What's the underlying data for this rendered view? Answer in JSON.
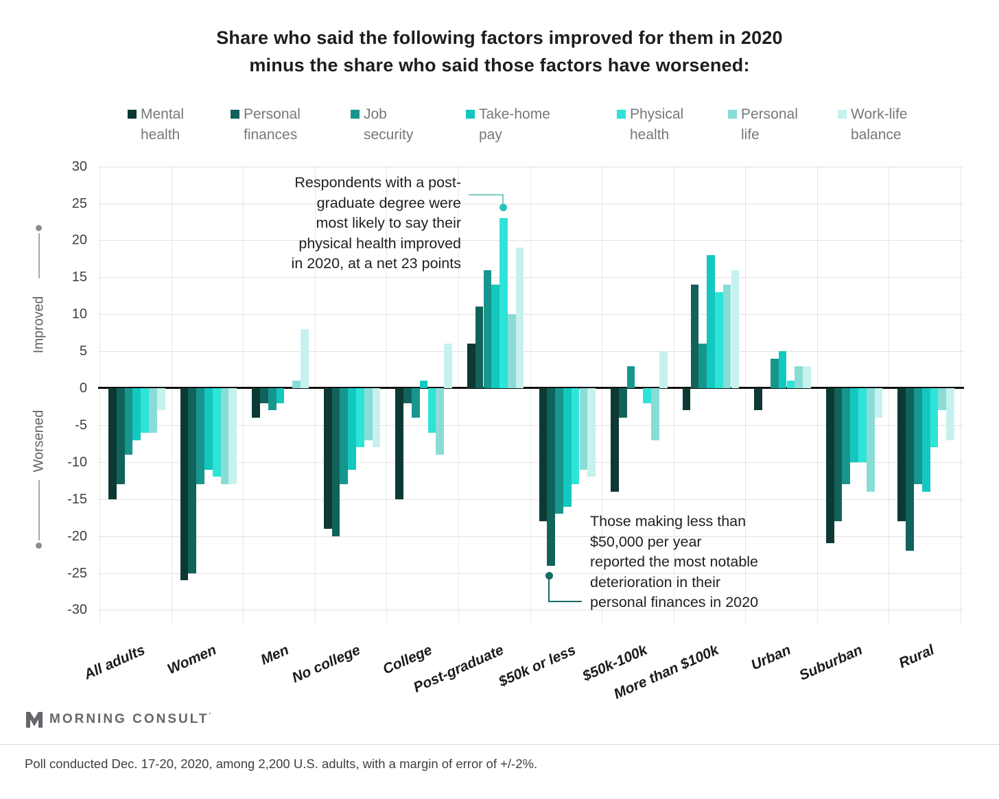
{
  "title": {
    "line1": "Share who said the following factors improved for them in 2020",
    "line2": "minus the share who said those factors have worsened:"
  },
  "chart_data": {
    "type": "bar",
    "title": "Share who said the following factors improved for them in 2020 minus the share who said those factors have worsened:",
    "categories": [
      "All adults",
      "Women",
      "Men",
      "No college",
      "College",
      "Post-graduate",
      "$50k or less",
      "$50k-100k",
      "More than $100k",
      "Urban",
      "Suburban",
      "Rural"
    ],
    "series": [
      {
        "name": "Mental health",
        "label_lines": [
          "Mental",
          "health"
        ],
        "color": "#0c3934",
        "values": [
          -15,
          -26,
          -4,
          -19,
          -15,
          6,
          -18,
          -14,
          -3,
          -3,
          -21,
          -18
        ]
      },
      {
        "name": "Personal finances",
        "label_lines": [
          "Personal",
          "finances"
        ],
        "color": "#11625b",
        "values": [
          -13,
          -25,
          -2,
          -20,
          -2,
          11,
          -24,
          -4,
          14,
          0,
          -18,
          -22
        ]
      },
      {
        "name": "Job security",
        "label_lines": [
          "Job",
          "security"
        ],
        "color": "#17968d",
        "values": [
          -9,
          -13,
          -3,
          -13,
          -4,
          16,
          -17,
          3,
          6,
          4,
          -13,
          -13
        ]
      },
      {
        "name": "Take-home pay",
        "label_lines": [
          "Take-home",
          "pay"
        ],
        "color": "#13c8bf",
        "values": [
          -7,
          -11,
          -2,
          -11,
          1,
          14,
          -16,
          0,
          18,
          5,
          -10,
          -14
        ]
      },
      {
        "name": "Physical health",
        "label_lines": [
          "Physical",
          "health"
        ],
        "color": "#2ee4d8",
        "values": [
          -6,
          -12,
          0,
          -8,
          -6,
          23,
          -13,
          -2,
          13,
          1,
          -10,
          -8
        ]
      },
      {
        "name": "Personal life",
        "label_lines": [
          "Personal",
          "life"
        ],
        "color": "#8adcd6",
        "values": [
          -6,
          -13,
          1,
          -7,
          -9,
          10,
          -11,
          -7,
          14,
          3,
          -14,
          -3
        ]
      },
      {
        "name": "Work-life balance",
        "label_lines": [
          "Work-life",
          "balance"
        ],
        "color": "#c7f1ee",
        "values": [
          -3,
          -13,
          8,
          -8,
          6,
          19,
          -12,
          5,
          16,
          3,
          -4,
          -7
        ]
      }
    ],
    "ylim": [
      -30,
      30
    ],
    "ytick_step": 5,
    "grid": true,
    "legend_position": "top",
    "axis_annotations": {
      "positive": "Improved",
      "negative": "Worsened"
    }
  },
  "annotations": [
    {
      "id": "postgrad",
      "lines": [
        "Respondents with a post-",
        "graduate degree were",
        "most likely to say their",
        "physical health improved",
        "in 2020, at a net 23 points"
      ]
    },
    {
      "id": "under50k",
      "lines": [
        "Those making less than",
        "$50,000 per year",
        "reported the most notable",
        "deterioration in their",
        "personal finances in 2020"
      ]
    }
  ],
  "connector_colors": {
    "postgrad_line": "#79ccc6",
    "postgrad_dot": "#2bc0b8",
    "under50k": "#156a63"
  },
  "footer": {
    "brand": "MORNING CONSULT",
    "note": "Poll conducted Dec. 17-20, 2020, among 2,200 U.S. adults, with a margin of error of +/-2%."
  }
}
